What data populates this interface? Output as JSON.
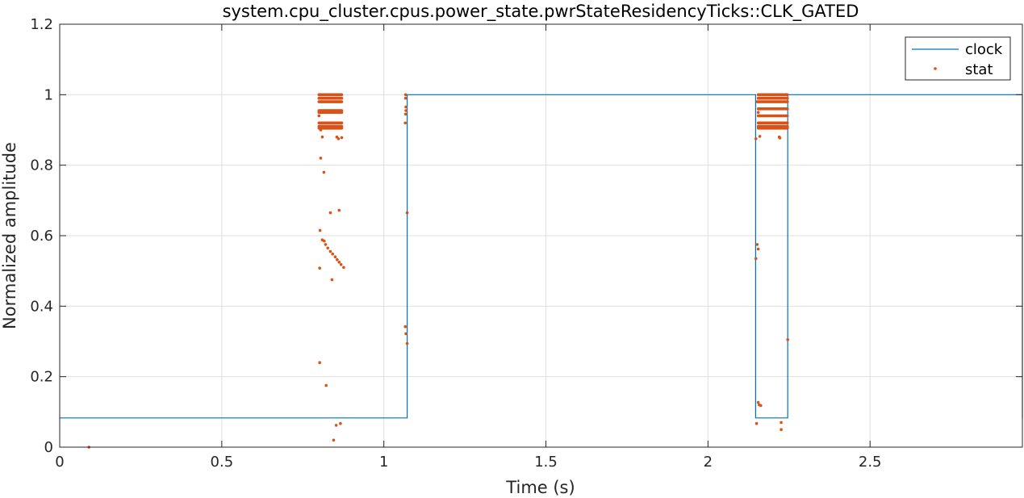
{
  "chart_data": {
    "type": "line",
    "title": "system.cpu_cluster.cpus.power_state.pwrStateResidencyTicks::CLK_GATED",
    "xlabel": "Time (s)",
    "ylabel": "Normalized amplitude",
    "xlim": [
      0,
      2.97
    ],
    "ylim": [
      0,
      1.2
    ],
    "xticks": [
      0,
      0.5,
      1,
      1.5,
      2,
      2.5
    ],
    "xtick_labels": [
      "0",
      "0.5",
      "1",
      "1.5",
      "2",
      "2.5"
    ],
    "yticks": [
      0,
      0.2,
      0.4,
      0.6,
      0.8,
      1,
      1.2
    ],
    "ytick_labels": [
      "0",
      "0.2",
      "0.4",
      "0.6",
      "0.8",
      "1",
      "1.2"
    ],
    "grid": true,
    "legend_position": "top-right",
    "colors": {
      "clock": "#0072BD",
      "stat": "#D95319"
    },
    "series": [
      {
        "name": "clock",
        "kind": "step-line",
        "points": [
          [
            0,
            0.083
          ],
          [
            1.072,
            0.083
          ],
          [
            1.072,
            1
          ],
          [
            2.147,
            1
          ],
          [
            2.147,
            0.083
          ],
          [
            2.246,
            0.083
          ],
          [
            2.246,
            1
          ],
          [
            2.97,
            1
          ],
          [
            2.97,
            0.083
          ]
        ]
      },
      {
        "name": "stat",
        "kind": "scatter",
        "bands": [
          {
            "x0": 0.8,
            "x1": 0.87,
            "values": [
              1.0,
              0.99,
              0.98,
              0.955,
              0.95,
              0.92,
              0.91,
              0.905
            ]
          },
          {
            "x0": 2.155,
            "x1": 2.245,
            "values": [
              1.0,
              0.99,
              0.98,
              0.96,
              0.94,
              0.92,
              0.91,
              0.905
            ]
          }
        ],
        "points": [
          [
            0.09,
            0.0
          ],
          [
            0.8,
            0.95
          ],
          [
            0.8,
            0.94
          ],
          [
            0.805,
            0.9
          ],
          [
            0.81,
            0.88
          ],
          [
            0.805,
            0.82
          ],
          [
            0.815,
            0.78
          ],
          [
            0.835,
            0.665
          ],
          [
            0.862,
            0.672
          ],
          [
            0.803,
            0.615
          ],
          [
            0.81,
            0.588
          ],
          [
            0.816,
            0.585
          ],
          [
            0.82,
            0.575
          ],
          [
            0.827,
            0.565
          ],
          [
            0.835,
            0.555
          ],
          [
            0.842,
            0.548
          ],
          [
            0.85,
            0.54
          ],
          [
            0.856,
            0.532
          ],
          [
            0.862,
            0.525
          ],
          [
            0.868,
            0.518
          ],
          [
            0.876,
            0.51
          ],
          [
            0.802,
            0.508
          ],
          [
            0.84,
            0.475
          ],
          [
            0.802,
            0.24
          ],
          [
            0.822,
            0.175
          ],
          [
            0.853,
            0.062
          ],
          [
            0.866,
            0.067
          ],
          [
            0.845,
            0.02
          ],
          [
            0.855,
            0.88
          ],
          [
            0.86,
            0.875
          ],
          [
            0.87,
            0.878
          ],
          [
            1.067,
            1.0
          ],
          [
            1.067,
            0.99
          ],
          [
            1.068,
            0.965
          ],
          [
            1.068,
            0.955
          ],
          [
            1.067,
            0.945
          ],
          [
            1.066,
            0.92
          ],
          [
            1.072,
            0.665
          ],
          [
            1.066,
            0.342
          ],
          [
            1.068,
            0.322
          ],
          [
            1.072,
            0.294
          ],
          [
            2.152,
            0.98
          ],
          [
            2.155,
            0.95
          ],
          [
            2.158,
            0.94
          ],
          [
            2.16,
            0.92
          ],
          [
            2.148,
            0.875
          ],
          [
            2.16,
            0.882
          ],
          [
            2.22,
            0.88
          ],
          [
            2.222,
            0.877
          ],
          [
            2.148,
            0.535
          ],
          [
            2.152,
            0.575
          ],
          [
            2.155,
            0.562
          ],
          [
            2.155,
            0.127
          ],
          [
            2.158,
            0.12
          ],
          [
            2.163,
            0.118
          ],
          [
            2.15,
            0.067
          ],
          [
            2.226,
            0.07
          ],
          [
            2.226,
            0.05
          ],
          [
            2.246,
            0.305
          ]
        ]
      }
    ]
  }
}
